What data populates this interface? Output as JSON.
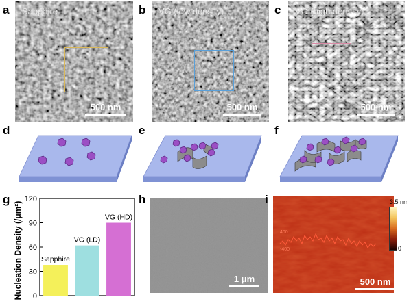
{
  "panels": {
    "a": {
      "label": "a",
      "title": "Sapphire",
      "scale": "500 nm",
      "box_color": "#d9b85a"
    },
    "b": {
      "label": "b",
      "title": "VG (low density)",
      "scale": "500 nm",
      "box_color": "#5aa0d9"
    },
    "c": {
      "label": "c",
      "title": "VG (high density)",
      "scale": "500 nm",
      "box_color": "#d98aa6"
    },
    "d": {
      "label": "d"
    },
    "e": {
      "label": "e"
    },
    "f": {
      "label": "f"
    },
    "g": {
      "label": "g"
    },
    "h": {
      "label": "h",
      "scale": "1 μm"
    },
    "i": {
      "label": "i",
      "scale": "500 nm",
      "colorbar_max": "3.5 nm",
      "colorbar_min": "0"
    }
  },
  "colors": {
    "substrate": "#a9b8ec",
    "nuclei": "#9b4fc4",
    "graphene": "#808080"
  },
  "chart_data": {
    "type": "bar",
    "categories": [
      "Sapphire",
      "VG (LD)",
      "VG (HD)"
    ],
    "values": [
      38,
      62,
      90
    ],
    "colors": [
      "#f4f05a",
      "#9edfe0",
      "#d56fd3"
    ],
    "ylabel": "Nucleation Density (/μm²)",
    "ylim": [
      0,
      120
    ],
    "yticks": [
      0,
      30,
      60,
      90,
      120
    ],
    "bar_labels": [
      "Sapphire",
      "VG (LD)",
      "VG (HD)"
    ]
  }
}
